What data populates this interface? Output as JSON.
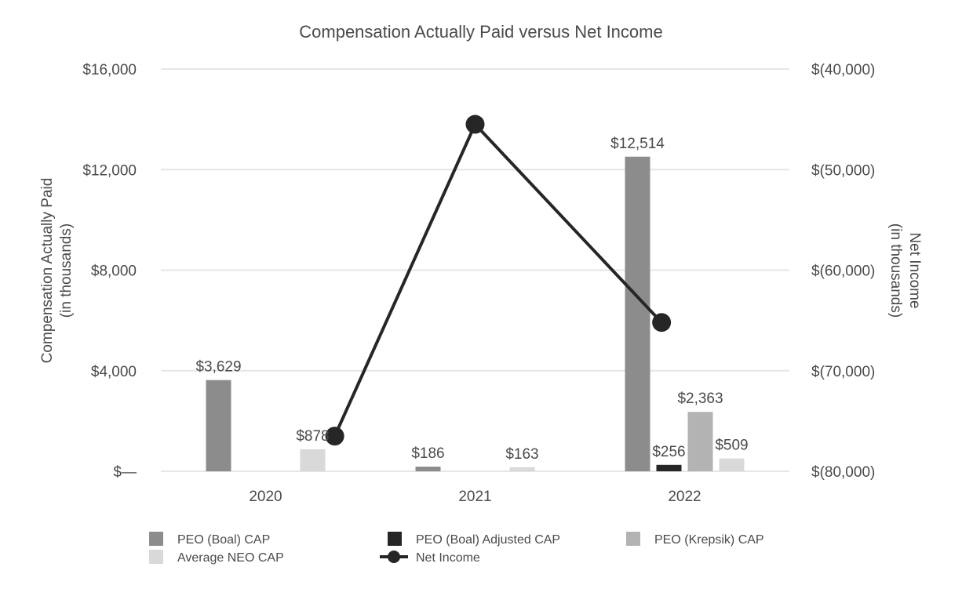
{
  "chart_data": {
    "type": "bar",
    "title": "Compensation Actually Paid versus Net Income",
    "categories": [
      "2020",
      "2021",
      "2022"
    ],
    "y_left": {
      "label_lines": [
        "Compensation Actually Paid",
        "(in thousands)"
      ],
      "range": [
        0,
        16000
      ],
      "ticks": [
        0,
        4000,
        8000,
        12000,
        16000
      ],
      "tick_labels": [
        "$—",
        "$4,000",
        "$8,000",
        "$12,000",
        "$16,000"
      ]
    },
    "y_right": {
      "label_lines": [
        "Net Income",
        "(in thousands)"
      ],
      "range": [
        -80000,
        -40000
      ],
      "ticks": [
        -80000,
        -70000,
        -60000,
        -50000,
        -40000
      ],
      "tick_labels": [
        "$(80,000)",
        "$(70,000)",
        "$(60,000)",
        "$(50,000)",
        "$(40,000)"
      ]
    },
    "grid": true,
    "legend_position": "bottom",
    "series": [
      {
        "name": "PEO (Boal) CAP",
        "kind": "bar",
        "color": "#8c8c8c",
        "values": [
          3629,
          186,
          12514
        ],
        "labels": [
          "$3,629",
          "$186",
          "$12,514"
        ]
      },
      {
        "name": "PEO (Boal) Adjusted CAP",
        "kind": "bar",
        "color": "#262626",
        "values": [
          null,
          null,
          256
        ],
        "labels": [
          null,
          null,
          "$256"
        ]
      },
      {
        "name": "PEO (Krepsik) CAP",
        "kind": "bar",
        "color": "#b3b3b3",
        "values": [
          null,
          null,
          2363
        ],
        "labels": [
          null,
          null,
          "$2,363"
        ]
      },
      {
        "name": "Average NEO CAP",
        "kind": "bar",
        "color": "#d9d9d9",
        "values": [
          878,
          163,
          509
        ],
        "labels": [
          "$878",
          "$163",
          "$509"
        ]
      },
      {
        "name": "Net Income",
        "kind": "line",
        "axis": "right",
        "color": "#262626",
        "values": [
          -76500,
          -45500,
          -65200
        ]
      }
    ]
  }
}
